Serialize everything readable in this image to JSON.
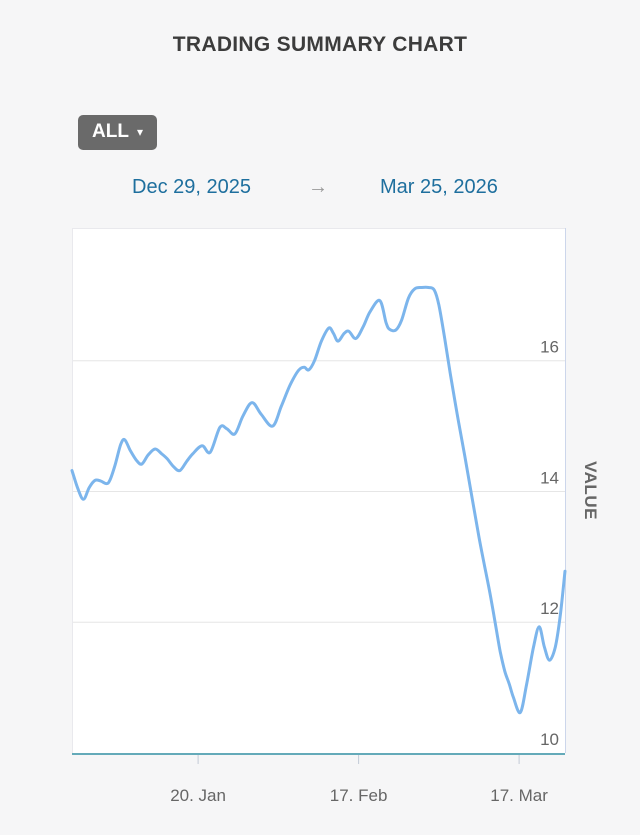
{
  "page": {
    "title": "TRADING SUMMARY CHART",
    "background": "#f6f6f7"
  },
  "controls": {
    "range_button": {
      "label": "ALL",
      "caret": "▾"
    },
    "date_from": "Dec 29, 2025",
    "arrow": "→",
    "date_to": "Mar 25, 2026"
  },
  "chart_data": {
    "type": "line",
    "title": "",
    "legend": "off",
    "grid": "on",
    "plot_background": "#ffffff",
    "series": [
      {
        "name": "VALUE",
        "color": "#7cb5ec",
        "points": [
          [
            0,
            14.32
          ],
          [
            1,
            14.05
          ],
          [
            2,
            13.88
          ],
          [
            3,
            14.06
          ],
          [
            4,
            14.17
          ],
          [
            5,
            14.16
          ],
          [
            6,
            14.12
          ],
          [
            6.6,
            14.17
          ],
          [
            7.5,
            14.4
          ],
          [
            8.5,
            14.72
          ],
          [
            9.2,
            14.79
          ],
          [
            10.2,
            14.62
          ],
          [
            11.3,
            14.47
          ],
          [
            12.2,
            14.42
          ],
          [
            13.3,
            14.56
          ],
          [
            14.5,
            14.65
          ],
          [
            15.6,
            14.58
          ],
          [
            16.6,
            14.5
          ],
          [
            17.7,
            14.38
          ],
          [
            18.8,
            14.32
          ],
          [
            20,
            14.46
          ],
          [
            21.1,
            14.58
          ],
          [
            22.7,
            14.7
          ],
          [
            24.1,
            14.6
          ],
          [
            25.8,
            14.98
          ],
          [
            27,
            14.96
          ],
          [
            28.4,
            14.88
          ],
          [
            29.8,
            15.15
          ],
          [
            31.4,
            15.36
          ],
          [
            33,
            15.18
          ],
          [
            35,
            15.0
          ],
          [
            36.5,
            15.3
          ],
          [
            38,
            15.62
          ],
          [
            39.5,
            15.85
          ],
          [
            40.5,
            15.9
          ],
          [
            41.3,
            15.86
          ],
          [
            42.3,
            16.0
          ],
          [
            43.5,
            16.3
          ],
          [
            44.8,
            16.5
          ],
          [
            45.6,
            16.42
          ],
          [
            46.4,
            16.3
          ],
          [
            47.5,
            16.42
          ],
          [
            48.3,
            16.45
          ],
          [
            49.5,
            16.34
          ],
          [
            50.8,
            16.52
          ],
          [
            52,
            16.75
          ],
          [
            53.7,
            16.92
          ],
          [
            54.8,
            16.58
          ],
          [
            55.4,
            16.48
          ],
          [
            56.5,
            16.47
          ],
          [
            57.5,
            16.62
          ],
          [
            58.7,
            16.96
          ],
          [
            59.8,
            17.1
          ],
          [
            61,
            17.12
          ],
          [
            62.2,
            17.12
          ],
          [
            63.2,
            17.08
          ],
          [
            64,
            16.85
          ],
          [
            65,
            16.35
          ],
          [
            66,
            15.8
          ],
          [
            67.2,
            15.18
          ],
          [
            68.5,
            14.55
          ],
          [
            69.8,
            13.9
          ],
          [
            71,
            13.3
          ],
          [
            72,
            12.85
          ],
          [
            73,
            12.4
          ],
          [
            74,
            11.9
          ],
          [
            74.7,
            11.55
          ],
          [
            75.5,
            11.25
          ],
          [
            76.3,
            11.05
          ],
          [
            77,
            10.85
          ],
          [
            78.2,
            10.62
          ],
          [
            79.3,
            11.05
          ],
          [
            80.5,
            11.62
          ],
          [
            81.5,
            11.93
          ],
          [
            82.4,
            11.62
          ],
          [
            83.3,
            11.42
          ],
          [
            84.3,
            11.62
          ],
          [
            85.2,
            12.12
          ],
          [
            86,
            12.78
          ]
        ]
      }
    ],
    "x": {
      "start_label": "Dec 29, 2025",
      "end_label": "Mar 25, 2026",
      "domain_days": [
        0,
        86
      ],
      "ticks": [
        {
          "day": 22,
          "label": "20. Jan"
        },
        {
          "day": 50,
          "label": "17. Feb"
        },
        {
          "day": 78,
          "label": "17. Mar"
        }
      ],
      "axis_color": "#64aab9",
      "tick_color": "#c3cbd6"
    },
    "y": {
      "title": "VALUE",
      "range": [
        10,
        18.03
      ],
      "ticks": [
        16,
        14,
        12,
        10
      ],
      "gridlines": [
        16,
        14,
        12
      ],
      "grid_color": "#e6e6e6",
      "label_color": "#666666",
      "border_right_color": "#ccd6eb",
      "border_color": "#e9e9ed"
    }
  }
}
